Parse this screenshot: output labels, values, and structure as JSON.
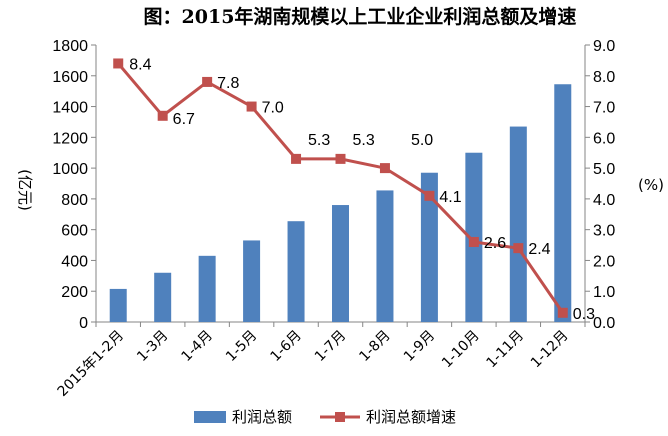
{
  "chart_data": {
    "type": "bar+line",
    "title": "图：2015年湖南规模以上工业企业利润总额及增速",
    "categories": [
      "2015年1-2月",
      "1-3月",
      "1-4月",
      "1-5月",
      "1-6月",
      "1-7月",
      "1-8月",
      "1-9月",
      "1-10月",
      "1-11月",
      "1-12月"
    ],
    "ylabel_left": "(亿元)",
    "ylabel_right": "(%)",
    "ylim_left": [
      0,
      1800
    ],
    "ylim_right": [
      0,
      9
    ],
    "yticks_left": [
      "0",
      "200",
      "400",
      "600",
      "800",
      "1000",
      "1200",
      "1400",
      "1600",
      "1800"
    ],
    "yticks_right": [
      "0.0",
      "1.0",
      "2.0",
      "3.0",
      "4.0",
      "5.0",
      "6.0",
      "7.0",
      "8.0",
      "9.0"
    ],
    "series": [
      {
        "name": "利润总额",
        "type": "bar",
        "axis": "left",
        "color": "#4F81BD",
        "values": [
          215,
          320,
          430,
          530,
          655,
          760,
          855,
          970,
          1100,
          1270,
          1545
        ]
      },
      {
        "name": "利润总额增速",
        "type": "line",
        "axis": "right",
        "color": "#C0504D",
        "values": [
          8.4,
          6.7,
          7.8,
          7.0,
          5.3,
          5.3,
          5.0,
          4.1,
          2.6,
          2.4,
          0.3
        ],
        "labels": [
          "8.4",
          "6.7",
          "7.8",
          "7.0",
          "5.3",
          "5.3",
          "5.0",
          "4.1",
          "2.6",
          "2.4",
          "0.3"
        ]
      }
    ],
    "grid": false,
    "legend": "bottom"
  }
}
